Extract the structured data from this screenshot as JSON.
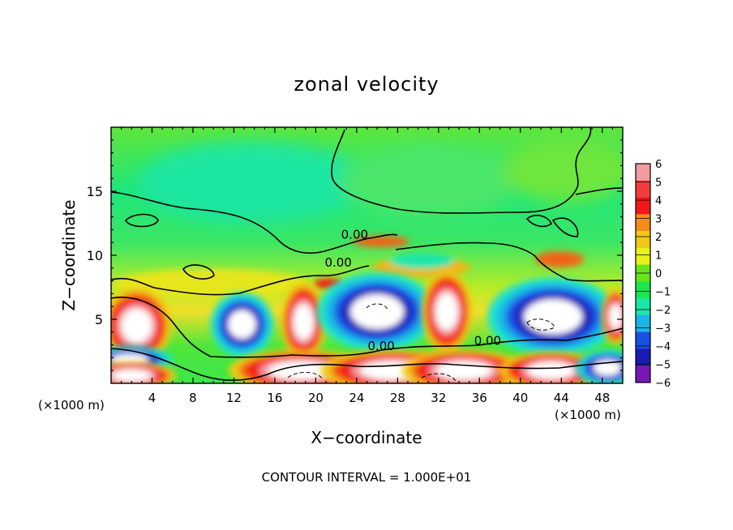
{
  "chart_data": {
    "type": "heatmap",
    "title": "zonal velocity",
    "xlabel": "X−coordinate",
    "ylabel": "Z−coordinate",
    "x_unit_left": "(×1000 m)",
    "x_unit_right": "(×1000 m)",
    "footer": "CONTOUR INTERVAL = 1.000E+01",
    "xlim": [
      0,
      50
    ],
    "ylim": [
      0,
      20
    ],
    "x_ticks": [
      4,
      8,
      12,
      16,
      20,
      24,
      28,
      32,
      36,
      40,
      44,
      48
    ],
    "y_ticks": [
      5,
      10,
      15
    ],
    "x_tick_labels": [
      "4",
      "8",
      "12",
      "16",
      "20",
      "24",
      "28",
      "32",
      "36",
      "40",
      "44",
      "48"
    ],
    "y_tick_labels": [
      "5",
      "10",
      "15"
    ],
    "colorbar": {
      "levels": [
        6,
        5,
        4,
        3,
        2,
        1,
        0,
        -1,
        -2,
        -3,
        -4,
        -5,
        -6
      ],
      "labels": [
        "6",
        "5",
        "4",
        "3",
        "2",
        "1",
        "0",
        "−1",
        "−2",
        "−3",
        "−4",
        "−5",
        "−6"
      ],
      "colors": [
        "#f29ba0",
        "#f23c3c",
        "#f21818",
        "#f28c18",
        "#f2c818",
        "#e6f218",
        "#64e61a",
        "#1ae650",
        "#1ae6aa",
        "#1ab4e6",
        "#1a50e6",
        "#1a1ab4",
        "#7818b4"
      ]
    },
    "contour_labels": [
      {
        "text": "0.00",
        "x": 23.8,
        "y": 11.3
      },
      {
        "text": "0.00",
        "x": 22.2,
        "y": 9.1
      },
      {
        "text": "0.00",
        "x": 26.4,
        "y": 2.6
      },
      {
        "text": "0.00",
        "x": 36.8,
        "y": 3.0
      }
    ],
    "field_features": [
      {
        "kind": "pos",
        "x": 2.5,
        "z": 4.5,
        "rx": 2.5,
        "rz": 2.2
      },
      {
        "kind": "neg",
        "x": 12.8,
        "z": 4.6,
        "rx": 2.2,
        "rz": 1.8
      },
      {
        "kind": "pos",
        "x": 18.8,
        "z": 4.8,
        "rx": 1.6,
        "rz": 2.3
      },
      {
        "kind": "neg",
        "x": 26.0,
        "z": 5.6,
        "rx": 4.2,
        "rz": 2.2
      },
      {
        "kind": "pos",
        "x": 32.8,
        "z": 5.6,
        "rx": 1.8,
        "rz": 2.4
      },
      {
        "kind": "neg",
        "x": 43.2,
        "z": 5.2,
        "rx": 4.6,
        "rz": 2.2
      },
      {
        "kind": "pos",
        "x": 49.3,
        "z": 5.2,
        "rx": 1.0,
        "rz": 1.6
      },
      {
        "kind": "neg",
        "x": 1.8,
        "z": 1.8,
        "rx": 3.0,
        "rz": 0.8
      },
      {
        "kind": "pos",
        "x": 2.0,
        "z": 0.6,
        "rx": 3.2,
        "rz": 0.8
      },
      {
        "kind": "pos",
        "x": 18.5,
        "z": 1.0,
        "rx": 5.2,
        "rz": 1.2
      },
      {
        "kind": "pos",
        "x": 27.5,
        "z": 1.0,
        "rx": 5.2,
        "rz": 1.2
      },
      {
        "kind": "pos",
        "x": 34.5,
        "z": 1.0,
        "rx": 4.5,
        "rz": 1.2
      },
      {
        "kind": "pos",
        "x": 43.0,
        "z": 1.0,
        "rx": 3.8,
        "rz": 1.1
      },
      {
        "kind": "neg",
        "x": 48.5,
        "z": 1.2,
        "rx": 2.2,
        "rz": 1.0
      }
    ]
  }
}
